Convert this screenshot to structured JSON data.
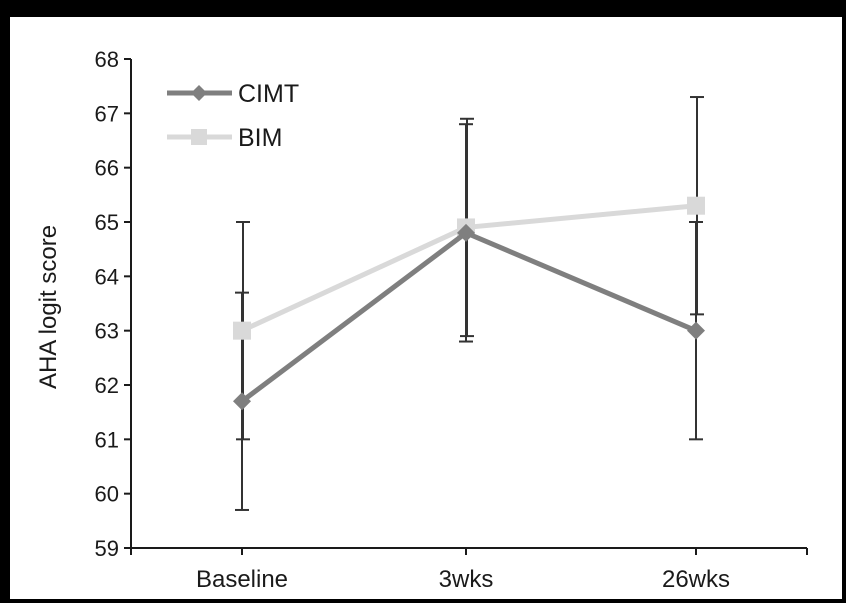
{
  "chart_data": {
    "type": "line",
    "title": "",
    "xlabel": "",
    "ylabel": "AHA logit score",
    "categories": [
      "Baseline",
      "3wks",
      "26wks"
    ],
    "ylim": [
      59,
      68
    ],
    "yticks": [
      59,
      60,
      61,
      62,
      63,
      64,
      65,
      66,
      67,
      68
    ],
    "grid": false,
    "legend_position": "top-left",
    "series": [
      {
        "name": "CIMT",
        "marker": "diamond",
        "color": "#7f7f7f",
        "values": [
          61.7,
          64.8,
          63.0
        ],
        "error_low": [
          59.7,
          62.8,
          61.0
        ],
        "error_high": [
          63.7,
          66.8,
          65.0
        ]
      },
      {
        "name": "BIM",
        "marker": "square",
        "color": "#d9d9d9",
        "values": [
          63.0,
          64.9,
          65.3
        ],
        "error_low": [
          61.0,
          62.9,
          63.3
        ],
        "error_high": [
          65.0,
          66.9,
          67.3
        ]
      }
    ],
    "errorbar_color": "#333333"
  }
}
